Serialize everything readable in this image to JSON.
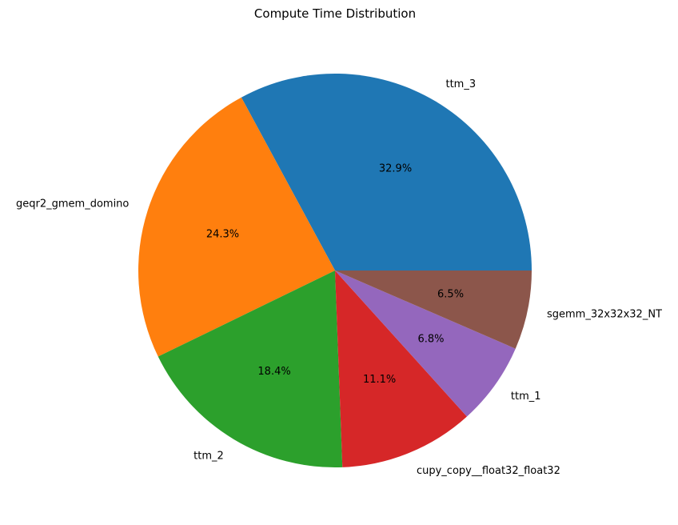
{
  "chart_data": {
    "type": "pie",
    "title": "Compute Time Distribution",
    "slices": [
      {
        "label": "ttm_3",
        "value": 32.9,
        "pct_label": "32.9%",
        "color": "#1f77b4"
      },
      {
        "label": "geqr2_gmem_domino",
        "value": 24.3,
        "pct_label": "24.3%",
        "color": "#ff7f0e"
      },
      {
        "label": "ttm_2",
        "value": 18.4,
        "pct_label": "18.4%",
        "color": "#2ca02c"
      },
      {
        "label": "cupy_copy__float32_float32",
        "value": 11.1,
        "pct_label": "11.1%",
        "color": "#d62728"
      },
      {
        "label": "ttm_1",
        "value": 6.8,
        "pct_label": "6.8%",
        "color": "#9467bd"
      },
      {
        "label": "sgemm_32x32x32_NT",
        "value": 6.5,
        "pct_label": "6.5%",
        "color": "#8c564b"
      }
    ],
    "start_angle_deg": 0,
    "direction": "counterclockwise"
  }
}
